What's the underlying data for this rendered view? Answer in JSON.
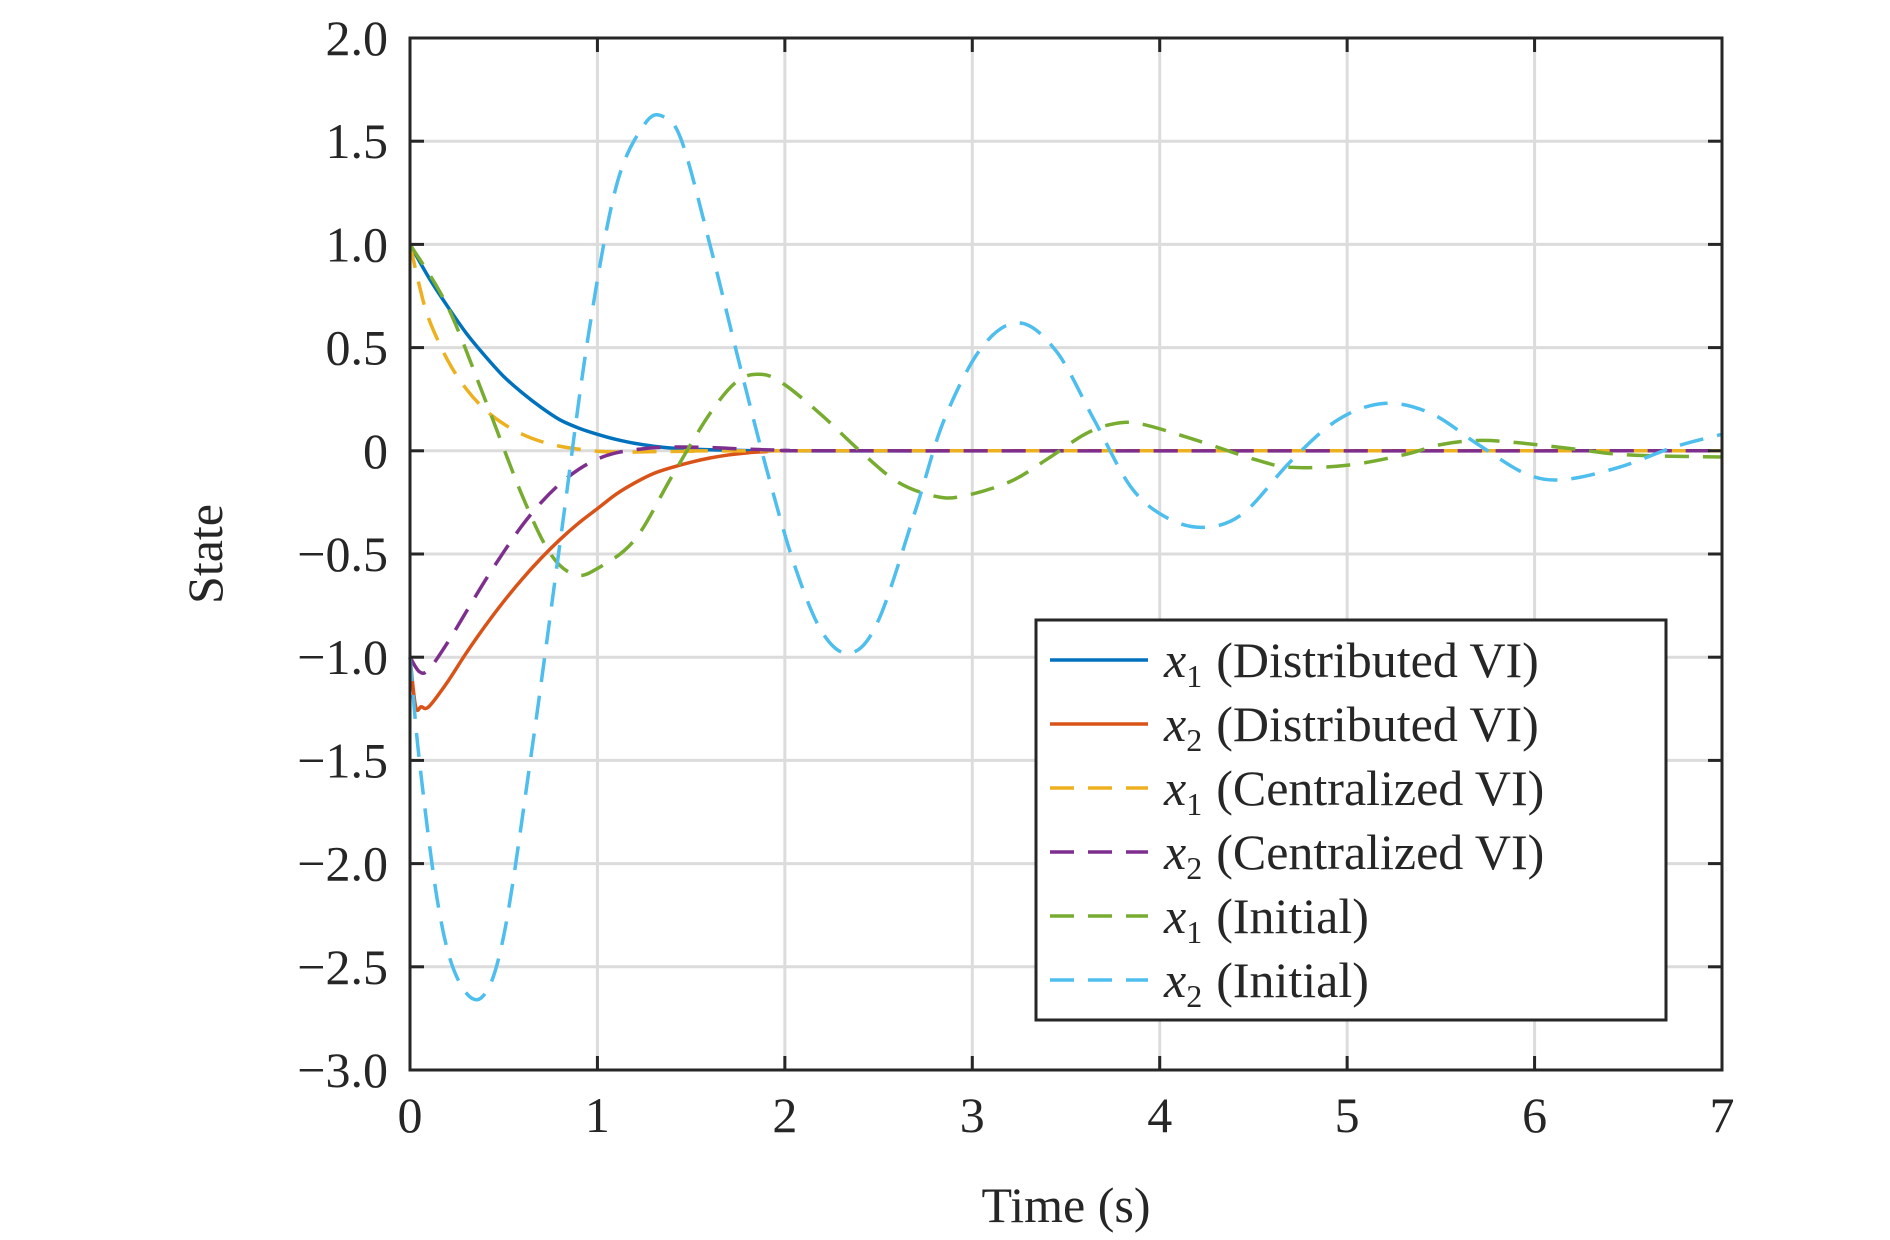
{
  "chart_data": {
    "type": "line",
    "title": "",
    "xlabel": "Time (s)",
    "ylabel": "State",
    "xlim": [
      0,
      7
    ],
    "ylim": [
      -3.0,
      2.0
    ],
    "grid": true,
    "legend_position": "bottom-right",
    "x_ticks": [
      0,
      1,
      2,
      3,
      4,
      5,
      6,
      7
    ],
    "x_tick_labels": [
      "0",
      "1",
      "2",
      "3",
      "4",
      "5",
      "6",
      "7"
    ],
    "y_ticks": [
      2.0,
      1.5,
      1.0,
      0.5,
      0,
      -0.5,
      -1.0,
      -1.5,
      -2.0,
      -2.5,
      -3.0
    ],
    "y_tick_labels": [
      "2.0",
      "1.5",
      "1.0",
      "0.5",
      "0",
      "−0.5",
      "−1.0",
      "−1.5",
      "−2.0",
      "−2.5",
      "−3.0"
    ],
    "series": [
      {
        "name": "x1 (Distributed VI)",
        "legend_var": "x",
        "legend_sub": "1",
        "legend_rest": "(Distributed VI)",
        "color": "#0072bd",
        "dash": "solid",
        "x": [
          0,
          0.1,
          0.2,
          0.3,
          0.4,
          0.5,
          0.6,
          0.7,
          0.8,
          0.9,
          1.0,
          1.1,
          1.2,
          1.3,
          1.4,
          1.5,
          1.7,
          2.0,
          3.0,
          7.0
        ],
        "y": [
          1.0,
          0.84,
          0.7,
          0.57,
          0.46,
          0.36,
          0.28,
          0.21,
          0.15,
          0.11,
          0.08,
          0.055,
          0.036,
          0.022,
          0.013,
          0.008,
          0.003,
          0.0,
          0.0,
          0.0
        ]
      },
      {
        "name": "x2 (Distributed VI)",
        "legend_var": "x",
        "legend_sub": "2",
        "legend_rest": "(Distributed VI)",
        "color": "#d95319",
        "dash": "solid",
        "x": [
          0,
          0.03,
          0.06,
          0.1,
          0.2,
          0.3,
          0.4,
          0.5,
          0.6,
          0.7,
          0.8,
          0.9,
          1.0,
          1.1,
          1.2,
          1.3,
          1.4,
          1.5,
          1.6,
          1.7,
          1.8,
          1.9,
          2.0,
          3.0,
          7.0
        ],
        "y": [
          -1.0,
          -1.24,
          -1.24,
          -1.24,
          -1.12,
          -0.98,
          -0.85,
          -0.73,
          -0.62,
          -0.52,
          -0.43,
          -0.35,
          -0.28,
          -0.21,
          -0.155,
          -0.11,
          -0.08,
          -0.055,
          -0.035,
          -0.02,
          -0.01,
          -0.004,
          0.0,
          0.0,
          0.0
        ]
      },
      {
        "name": "x1 (Centralized VI)",
        "legend_var": "x",
        "legend_sub": "1",
        "legend_rest": "(Centralized VI)",
        "color": "#edb120",
        "dash": "dashed",
        "x": [
          0,
          0.05,
          0.1,
          0.2,
          0.3,
          0.4,
          0.5,
          0.6,
          0.7,
          0.8,
          0.9,
          1.0,
          1.1,
          1.2,
          1.5,
          2.0,
          7.0
        ],
        "y": [
          1.0,
          0.8,
          0.64,
          0.44,
          0.3,
          0.2,
          0.13,
          0.08,
          0.045,
          0.022,
          0.008,
          -0.002,
          -0.006,
          -0.006,
          -0.002,
          0.0,
          0.0
        ]
      },
      {
        "name": "x2 (Centralized VI)",
        "legend_var": "x",
        "legend_sub": "2",
        "legend_rest": "(Centralized VI)",
        "color": "#7e2f8e",
        "dash": "dashed",
        "x": [
          0,
          0.05,
          0.1,
          0.2,
          0.3,
          0.4,
          0.5,
          0.6,
          0.7,
          0.8,
          0.9,
          1.0,
          1.1,
          1.2,
          1.3,
          1.4,
          1.5,
          1.6,
          1.7,
          1.8,
          2.0,
          2.5,
          7.0
        ],
        "y": [
          -1.0,
          -1.07,
          -1.06,
          -0.93,
          -0.78,
          -0.63,
          -0.49,
          -0.36,
          -0.25,
          -0.16,
          -0.09,
          -0.04,
          -0.01,
          0.005,
          0.015,
          0.018,
          0.018,
          0.016,
          0.012,
          0.008,
          0.003,
          0.0,
          0.0
        ]
      },
      {
        "name": "x1 (Initial)",
        "legend_var": "x",
        "legend_sub": "1",
        "legend_rest": "(Initial)",
        "color": "#77ac30",
        "dash": "dashed",
        "x": [
          0,
          0.2,
          0.4,
          0.6,
          0.75,
          0.88,
          1.0,
          1.2,
          1.4,
          1.6,
          1.75,
          1.88,
          2.0,
          2.2,
          2.4,
          2.6,
          2.8,
          2.95,
          3.2,
          3.4,
          3.6,
          3.75,
          3.9,
          4.2,
          4.5,
          4.7,
          5.0,
          5.3,
          5.5,
          5.7,
          5.9,
          6.2,
          6.5,
          7.0
        ],
        "y": [
          1.0,
          0.7,
          0.25,
          -0.22,
          -0.5,
          -0.6,
          -0.57,
          -0.43,
          -0.12,
          0.18,
          0.34,
          0.37,
          0.32,
          0.17,
          0.0,
          -0.15,
          -0.22,
          -0.22,
          -0.15,
          -0.04,
          0.08,
          0.13,
          0.13,
          0.05,
          -0.04,
          -0.08,
          -0.07,
          -0.02,
          0.03,
          0.05,
          0.04,
          0.01,
          -0.02,
          -0.03
        ]
      },
      {
        "name": "x2 (Initial)",
        "legend_var": "x",
        "legend_sub": "2",
        "legend_rest": "(Initial)",
        "color": "#4dbeee",
        "dash": "dashed",
        "x": [
          0,
          0.05,
          0.15,
          0.25,
          0.38,
          0.5,
          0.65,
          0.8,
          0.95,
          1.1,
          1.25,
          1.35,
          1.45,
          1.6,
          1.75,
          1.9,
          2.05,
          2.2,
          2.35,
          2.5,
          2.7,
          2.85,
          3.05,
          3.25,
          3.45,
          3.65,
          3.85,
          4.05,
          4.25,
          4.45,
          4.7,
          4.95,
          5.2,
          5.45,
          5.7,
          5.95,
          6.15,
          6.45,
          6.75,
          7.0
        ],
        "y": [
          -1.0,
          -1.5,
          -2.2,
          -2.55,
          -2.65,
          -2.35,
          -1.45,
          -0.45,
          0.55,
          1.28,
          1.58,
          1.62,
          1.5,
          1.0,
          0.45,
          -0.08,
          -0.55,
          -0.88,
          -0.98,
          -0.82,
          -0.28,
          0.15,
          0.5,
          0.62,
          0.48,
          0.15,
          -0.18,
          -0.33,
          -0.37,
          -0.3,
          -0.05,
          0.15,
          0.23,
          0.18,
          0.03,
          -0.11,
          -0.14,
          -0.08,
          0.02,
          0.08
        ]
      }
    ]
  }
}
